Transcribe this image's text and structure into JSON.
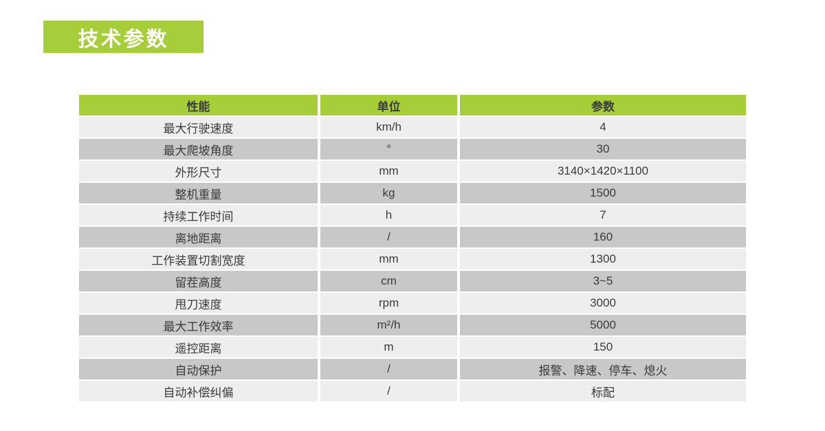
{
  "title_badge": {
    "label": "技术参数",
    "bg_color": "#a5ce39",
    "text_color": "#ffffff"
  },
  "table": {
    "header": {
      "bg_color": "#a5ce39",
      "columns": [
        "性能",
        "单位",
        "参数"
      ]
    },
    "row_colors": {
      "light": "#eeeeee",
      "dark": "#c8c8c8"
    },
    "rows": [
      {
        "name": "最大行驶速度",
        "unit": "km/h",
        "value": "4"
      },
      {
        "name": "最大爬坡角度",
        "unit": "°",
        "value": "30"
      },
      {
        "name": "外形尺寸",
        "unit": "mm",
        "value": "3140×1420×1100"
      },
      {
        "name": "整机重量",
        "unit": "kg",
        "value": "1500"
      },
      {
        "name": "持续工作时间",
        "unit": "h",
        "value": "7"
      },
      {
        "name": "离地距离",
        "unit": "/",
        "value": "160"
      },
      {
        "name": "工作装置切割宽度",
        "unit": "mm",
        "value": "1300"
      },
      {
        "name": "留茬高度",
        "unit": "cm",
        "value": "3~5"
      },
      {
        "name": "甩刀速度",
        "unit": "rpm",
        "value": "3000"
      },
      {
        "name": "最大工作效率",
        "unit": "m²/h",
        "value": "5000"
      },
      {
        "name": "遥控距离",
        "unit": "m",
        "value": "150"
      },
      {
        "name": "自动保护",
        "unit": "/",
        "value": "报警、降速、停车、熄火"
      },
      {
        "name": "自动补偿纠偏",
        "unit": "/",
        "value": "标配"
      }
    ]
  }
}
